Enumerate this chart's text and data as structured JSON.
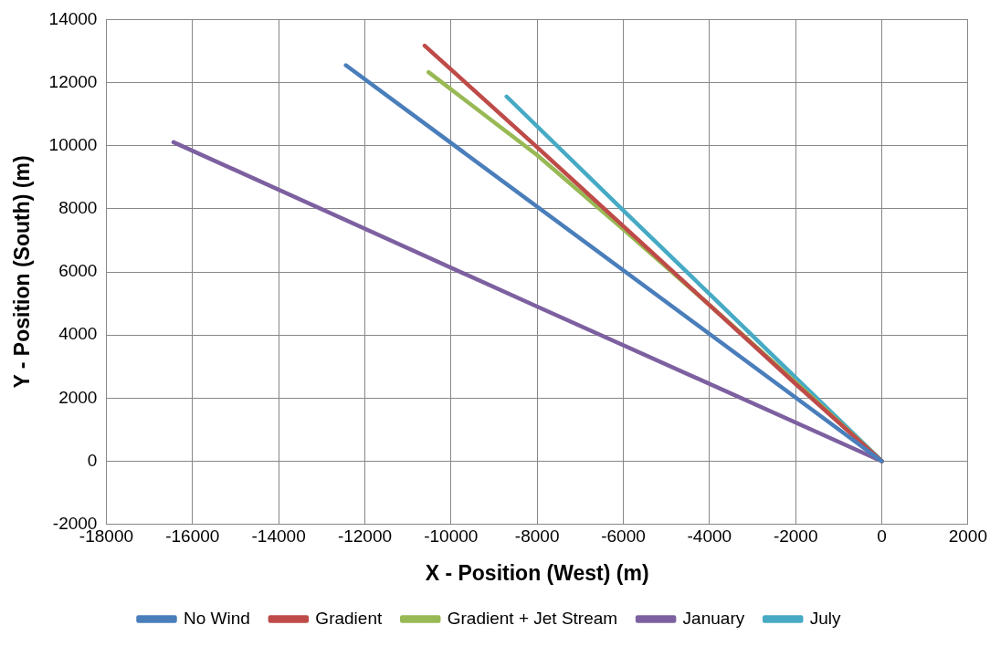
{
  "chart_data": {
    "type": "line",
    "xlabel": "X - Position (West) (m)",
    "ylabel": "Y - Position (South) (m)",
    "series": [
      {
        "name": "No Wind",
        "color": "#4a7ebb",
        "x": [
          -12440,
          -6000,
          0
        ],
        "values": [
          12550,
          6050,
          0
        ]
      },
      {
        "name": "Gradient",
        "color": "#be4b48",
        "x": [
          -10610,
          -8000,
          -6000,
          -4000,
          -2000,
          0
        ],
        "values": [
          13170,
          9950,
          7450,
          4950,
          2450,
          0
        ]
      },
      {
        "name": "Gradient + Jet Stream",
        "color": "#98b954",
        "x": [
          -10520,
          -8000,
          -6000,
          -4000,
          -2000,
          0
        ],
        "values": [
          12330,
          9700,
          7350,
          4950,
          2500,
          0
        ]
      },
      {
        "name": "January",
        "color": "#7d60a0",
        "x": [
          -16440,
          -8000,
          0
        ],
        "values": [
          10110,
          4900,
          0
        ]
      },
      {
        "name": "July",
        "color": "#46aac5",
        "x": [
          -8710,
          -6000,
          -4000,
          -2000,
          0
        ],
        "values": [
          11560,
          7950,
          5300,
          2650,
          0
        ]
      }
    ],
    "xlim": [
      -18000,
      2000
    ],
    "xticks": [
      -18000,
      -16000,
      -14000,
      -12000,
      -10000,
      -8000,
      -6000,
      -4000,
      -2000,
      0,
      2000
    ],
    "ylim": [
      -2000,
      14000
    ],
    "yticks": [
      -2000,
      0,
      2000,
      4000,
      6000,
      8000,
      10000,
      12000,
      14000
    ],
    "grid": true,
    "legend": "bottom",
    "marker": "none",
    "line_style": "solid"
  }
}
